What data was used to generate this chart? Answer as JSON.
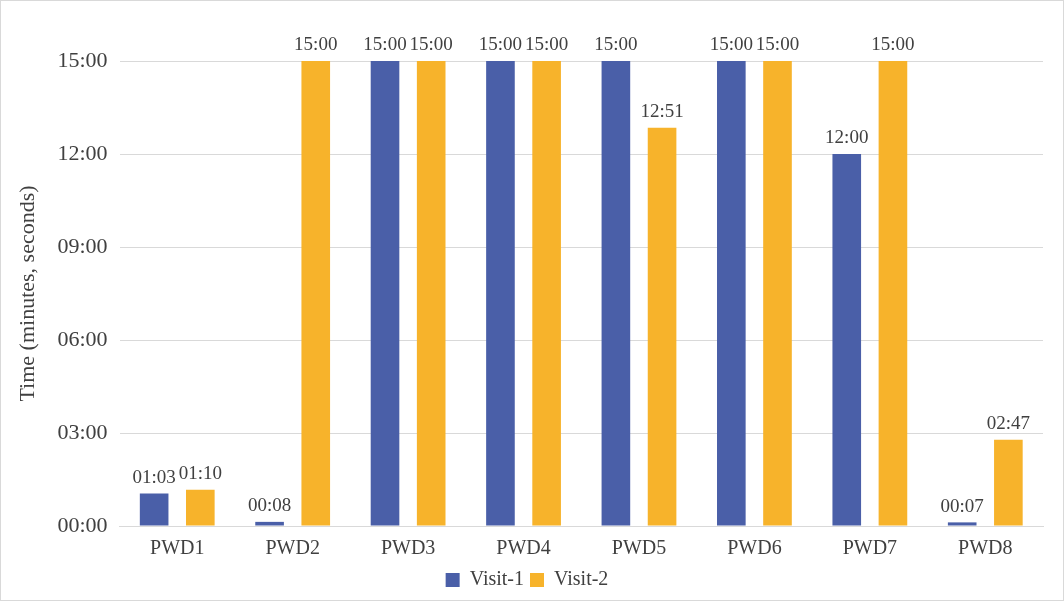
{
  "chart_data": {
    "type": "bar",
    "ylabel": "Time (minutes, seconds)",
    "categories": [
      "PWD1",
      "PWD2",
      "PWD3",
      "PWD4",
      "PWD5",
      "PWD6",
      "PWD7",
      "PWD8"
    ],
    "series": [
      {
        "name": "Visit-1",
        "color": "#4a5fa8",
        "values": [
          1.05,
          0.1333,
          15,
          15,
          15,
          15,
          12,
          0.1167
        ],
        "value_labels": [
          "01:03",
          "00:08",
          "15:00",
          "15:00",
          "15:00",
          "15:00",
          "12:00",
          "00:07"
        ]
      },
      {
        "name": "Visit-2",
        "color": "#f7b32b",
        "values": [
          1.1667,
          15,
          15,
          15,
          12.85,
          15,
          15,
          2.7833
        ],
        "value_labels": [
          "01:10",
          "15:00",
          "15:00",
          "15:00",
          "12:51",
          "15:00",
          "15:00",
          "02:47"
        ]
      }
    ],
    "ylim": [
      0,
      15
    ],
    "yticks": [
      {
        "value": 0,
        "label": "00:00"
      },
      {
        "value": 3,
        "label": "03:00"
      },
      {
        "value": 6,
        "label": "06:00"
      },
      {
        "value": 9,
        "label": "09:00"
      },
      {
        "value": 12,
        "label": "12:00"
      },
      {
        "value": 15,
        "label": "15:00"
      }
    ],
    "grid": "y",
    "legend": "bottom"
  }
}
